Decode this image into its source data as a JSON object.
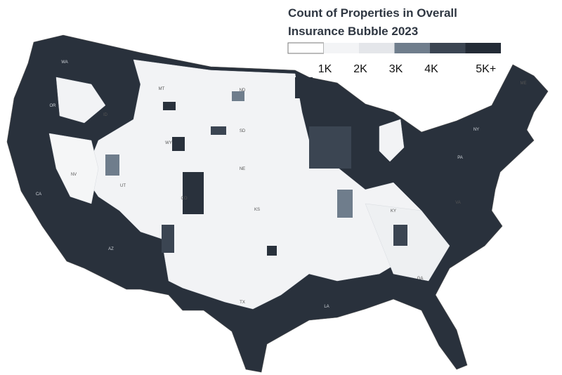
{
  "title_lines": [
    "Count of Properties in Overall",
    "Insurance Bubble 2023"
  ],
  "legend": {
    "colors": [
      "#ffffff",
      "#f3f4f6",
      "#e4e6ea",
      "#6f7d8c",
      "#3b4552",
      "#232b36"
    ],
    "labels": [
      "1K",
      "2K",
      "3K",
      "4K",
      "5K+"
    ]
  },
  "states": [
    "WA",
    "OR",
    "CA",
    "NV",
    "ID",
    "MT",
    "WY",
    "UT",
    "AZ",
    "CO",
    "ND",
    "SD",
    "NE",
    "KS",
    "TX",
    "LA",
    "GA",
    "ME",
    "NY",
    "PA",
    "VA",
    "KY"
  ]
}
